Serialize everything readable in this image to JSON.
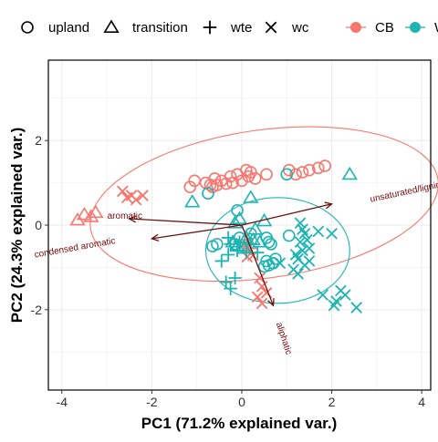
{
  "chart_data": {
    "type": "scatter",
    "title": "",
    "xlabel": "PC1 (71.2% explained var.)",
    "ylabel": "PC2 (24.3% explained var.)",
    "xlim": [
      -4.3,
      4.2
    ],
    "ylim": [
      -3.9,
      3.9
    ],
    "xticks": [
      -4,
      -2,
      0,
      2,
      4
    ],
    "xtick_labels": [
      "-4",
      "-2",
      "0",
      "2",
      "4"
    ],
    "yticks": [
      -2,
      0,
      2
    ],
    "ytick_labels": [
      "-2",
      "0",
      "2"
    ],
    "grid": true,
    "legend_position": "top",
    "shape_legend": [
      {
        "label": "upland",
        "shape": "circle"
      },
      {
        "label": "transition",
        "shape": "triangle"
      },
      {
        "label": "wte",
        "shape": "plus"
      },
      {
        "label": "wc",
        "shape": "cross"
      }
    ],
    "color_legend": [
      {
        "label": "CB",
        "color": "#F8766D"
      },
      {
        "label": "W",
        "color": "#1CB5B2"
      }
    ],
    "colors": {
      "CB": "#F8766D",
      "W": "#1CB5B2",
      "arrow": "#6B1010"
    },
    "ellipses": [
      {
        "group": "CB",
        "center": [
          0.5,
          0.5
        ],
        "semi_major": 3.9,
        "semi_minor": 1.75,
        "angle_deg": 8
      },
      {
        "group": "W",
        "center": [
          0.8,
          -0.6
        ],
        "semi_major": 1.6,
        "semi_minor": 1.25,
        "angle_deg": 0
      }
    ],
    "loadings": [
      {
        "label": "unsaturated/lignin",
        "end": [
          2.0,
          0.5
        ],
        "label_at": [
          3.65,
          0.72
        ],
        "label_angle": -12
      },
      {
        "label": "aromatic",
        "end": [
          -2.5,
          0.15
        ],
        "label_at": [
          -2.6,
          0.15
        ],
        "label_angle": 0
      },
      {
        "label": "condensed aromatic",
        "end": [
          -2.0,
          -0.32
        ],
        "label_at": [
          -3.7,
          -0.6
        ],
        "label_angle": -10
      },
      {
        "label": "aliphatic",
        "end": [
          0.7,
          -1.9
        ],
        "label_at": [
          0.88,
          -2.7
        ],
        "label_angle": 72
      }
    ],
    "series": [
      {
        "site": "CB",
        "group": "upland",
        "shape": "circle",
        "points": [
          [
            -1.15,
            0.9
          ],
          [
            -1.05,
            1.05
          ],
          [
            -0.7,
            0.95
          ],
          [
            -0.6,
            1.1
          ],
          [
            -0.55,
            0.95
          ],
          [
            -0.45,
            1.05
          ],
          [
            -0.35,
            0.98
          ],
          [
            -0.25,
            1.15
          ],
          [
            -0.2,
            1.0
          ],
          [
            -0.1,
            1.2
          ],
          [
            0.0,
            1.05
          ],
          [
            0.1,
            1.3
          ],
          [
            0.15,
            1.15
          ],
          [
            0.2,
            1.25
          ],
          [
            0.3,
            1.1
          ],
          [
            -0.8,
            1.0
          ],
          [
            0.55,
            1.2
          ],
          [
            1.05,
            1.3
          ],
          [
            1.2,
            1.2
          ],
          [
            1.35,
            1.25
          ],
          [
            1.5,
            1.3
          ],
          [
            1.7,
            1.35
          ],
          [
            1.85,
            1.4
          ],
          [
            -0.65,
            0.9
          ]
        ]
      },
      {
        "site": "CB",
        "group": "transition",
        "shape": "triangle",
        "points": [
          [
            -3.65,
            0.12
          ],
          [
            -3.5,
            0.25
          ],
          [
            -3.35,
            0.2
          ],
          [
            -3.25,
            0.3
          ]
        ]
      },
      {
        "site": "CB",
        "group": "wte",
        "shape": "plus",
        "points": [
          [
            0.05,
            -0.5
          ],
          [
            0.1,
            -0.6
          ],
          [
            0.15,
            -0.45
          ],
          [
            0.2,
            -0.55
          ],
          [
            0.12,
            -0.35
          ]
        ]
      },
      {
        "site": "CB",
        "group": "wc",
        "shape": "cross",
        "points": [
          [
            -2.65,
            0.8
          ],
          [
            -2.55,
            0.65
          ],
          [
            -2.45,
            0.7
          ],
          [
            -2.35,
            0.6
          ],
          [
            -2.2,
            0.7
          ],
          [
            0.12,
            -0.75
          ],
          [
            0.25,
            -0.72
          ],
          [
            0.4,
            -1.25
          ],
          [
            0.45,
            -1.45
          ],
          [
            0.55,
            -1.6
          ],
          [
            0.35,
            -1.7
          ],
          [
            0.45,
            -1.85
          ]
        ]
      },
      {
        "site": "W",
        "group": "upland",
        "shape": "circle",
        "points": [
          [
            -0.55,
            -0.45
          ],
          [
            -0.65,
            -0.5
          ],
          [
            -0.15,
            -0.45
          ],
          [
            0.55,
            -0.3
          ],
          [
            0.65,
            -0.45
          ],
          [
            0.55,
            -0.85
          ],
          [
            0.6,
            -0.95
          ],
          [
            0.7,
            -0.9
          ],
          [
            0.5,
            -0.98
          ],
          [
            0.75,
            -0.8
          ],
          [
            1.05,
            -0.25
          ],
          [
            1.0,
            1.2
          ],
          [
            -0.1,
            0.35
          ],
          [
            -0.05,
            -0.3
          ],
          [
            0.2,
            -0.2
          ],
          [
            0.6,
            -0.4
          ],
          [
            -0.75,
            0.75
          ]
        ]
      },
      {
        "site": "W",
        "group": "transition",
        "shape": "triangle",
        "points": [
          [
            -1.1,
            0.55
          ],
          [
            0.2,
            0.65
          ],
          [
            -0.05,
            0.15
          ],
          [
            0.3,
            -0.1
          ],
          [
            0.1,
            -0.3
          ],
          [
            0.25,
            -0.35
          ],
          [
            -0.2,
            -0.4
          ],
          [
            -0.1,
            -0.5
          ],
          [
            0.4,
            -0.4
          ],
          [
            0.05,
            -0.55
          ],
          [
            2.4,
            1.2
          ],
          [
            0.5,
            0.1
          ],
          [
            -0.15,
            0.05
          ]
        ]
      },
      {
        "site": "W",
        "group": "wte",
        "shape": "plus",
        "points": [
          [
            -0.45,
            -0.85
          ],
          [
            -0.3,
            -0.7
          ],
          [
            -0.25,
            -0.45
          ],
          [
            -0.1,
            -0.6
          ],
          [
            -0.05,
            -0.4
          ],
          [
            0.1,
            -0.65
          ],
          [
            0.2,
            -0.45
          ],
          [
            -0.35,
            -1.35
          ],
          [
            -0.25,
            -1.5
          ],
          [
            -0.15,
            -1.25
          ],
          [
            -0.3,
            -0.3
          ],
          [
            0.35,
            -0.65
          ]
        ]
      },
      {
        "site": "W",
        "group": "wc",
        "shape": "cross",
        "points": [
          [
            1.3,
            0.05
          ],
          [
            1.35,
            -0.1
          ],
          [
            1.4,
            -0.2
          ],
          [
            1.45,
            -0.35
          ],
          [
            1.3,
            -0.4
          ],
          [
            1.5,
            -0.55
          ],
          [
            1.35,
            -0.6
          ],
          [
            1.2,
            -0.7
          ],
          [
            1.25,
            -0.8
          ],
          [
            1.5,
            -0.85
          ],
          [
            1.7,
            -0.15
          ],
          [
            2.0,
            -0.2
          ],
          [
            1.15,
            -1.05
          ],
          [
            1.25,
            -1.15
          ],
          [
            1.4,
            -0.95
          ],
          [
            1.8,
            -1.65
          ],
          [
            2.1,
            -1.8
          ],
          [
            2.2,
            -1.55
          ],
          [
            2.3,
            -1.65
          ],
          [
            2.05,
            -1.9
          ],
          [
            2.55,
            -1.95
          ],
          [
            0.85,
            -0.9
          ]
        ]
      }
    ]
  }
}
